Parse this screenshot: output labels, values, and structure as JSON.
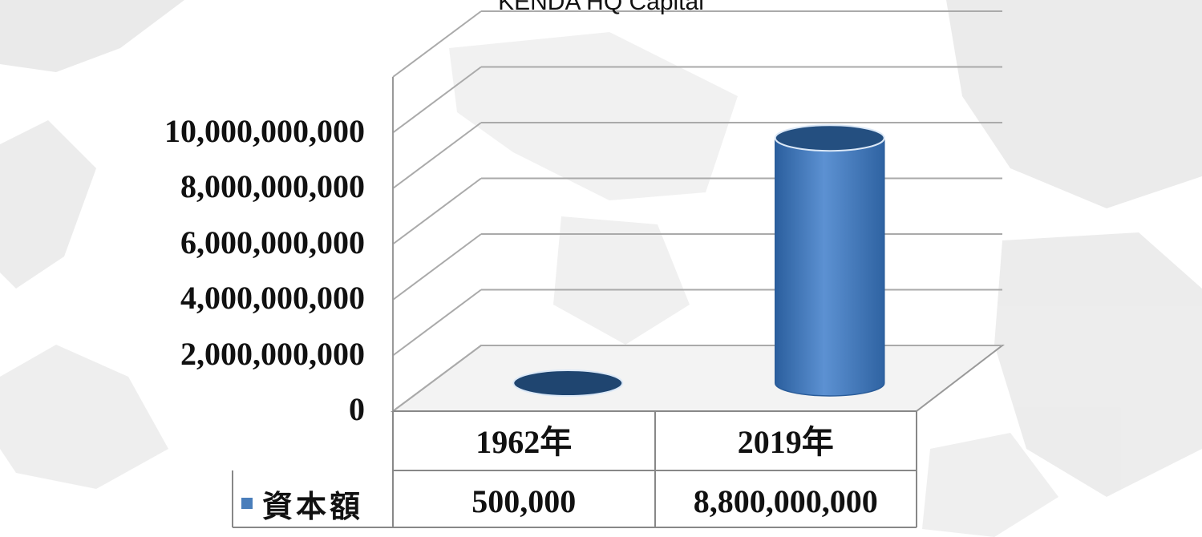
{
  "chart_data": {
    "type": "bar",
    "title": "KENDA HQ Capital",
    "categories": [
      "1962年",
      "2019年"
    ],
    "series": [
      {
        "name": "資本額",
        "values": [
          500000,
          8800000000
        ],
        "value_labels": [
          "500,000",
          "8,800,000,000"
        ]
      }
    ],
    "y_ticks": [
      "0",
      "2,000,000,000",
      "4,000,000,000",
      "6,000,000,000",
      "8,000,000,000",
      "10,000,000,000"
    ],
    "ylim": [
      0,
      12000000000
    ],
    "grid": true,
    "legend": "data-table-left",
    "bar_color": "#4a7ebb",
    "bar_dark_color": "#244f80",
    "background": "world-map"
  }
}
